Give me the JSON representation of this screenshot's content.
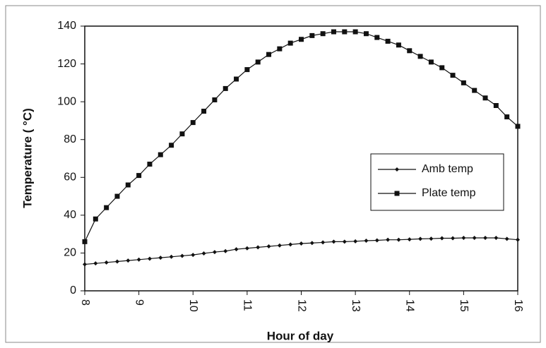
{
  "chart_data": {
    "type": "line",
    "xlabel": "Hour of day",
    "ylabel": "Temperature ( °C)",
    "x": [
      8,
      8.2,
      8.4,
      8.6,
      8.8,
      9,
      9.2,
      9.4,
      9.6,
      9.8,
      10,
      10.2,
      10.4,
      10.6,
      10.8,
      11,
      11.2,
      11.4,
      11.6,
      11.8,
      12,
      12.2,
      12.4,
      12.6,
      12.8,
      13,
      13.2,
      13.4,
      13.6,
      13.8,
      14,
      14.2,
      14.4,
      14.6,
      14.8,
      15,
      15.2,
      15.4,
      15.6,
      15.8,
      16
    ],
    "series": [
      {
        "name": "Amb temp",
        "color": "#111111",
        "marker": "diamond",
        "values": [
          14,
          14.5,
          15,
          15.5,
          16,
          16.5,
          17,
          17.5,
          18,
          18.5,
          19,
          19.8,
          20.5,
          21,
          22,
          22.5,
          23,
          23.5,
          24,
          24.5,
          25,
          25.3,
          25.6,
          26,
          26,
          26.2,
          26.5,
          26.7,
          27,
          27,
          27.2,
          27.5,
          27.6,
          27.8,
          27.8,
          28,
          28,
          28,
          28,
          27.5,
          27
        ]
      },
      {
        "name": "Plate temp",
        "color": "#111111",
        "marker": "square",
        "values": [
          26,
          38,
          44,
          50,
          56,
          61,
          67,
          72,
          77,
          83,
          89,
          95,
          101,
          107,
          112,
          117,
          121,
          125,
          128,
          131,
          133,
          135,
          136,
          137,
          137,
          137,
          136,
          134,
          132,
          130,
          127,
          124,
          121,
          118,
          114,
          110,
          106,
          102,
          98,
          92,
          87
        ]
      }
    ],
    "xlim": [
      8,
      16
    ],
    "xticks": [
      8,
      9,
      10,
      11,
      12,
      13,
      14,
      15,
      16
    ],
    "ylim": [
      0,
      140
    ],
    "yticks": [
      0,
      20,
      40,
      60,
      80,
      100,
      120,
      140
    ],
    "grid": false,
    "legend": "right"
  }
}
